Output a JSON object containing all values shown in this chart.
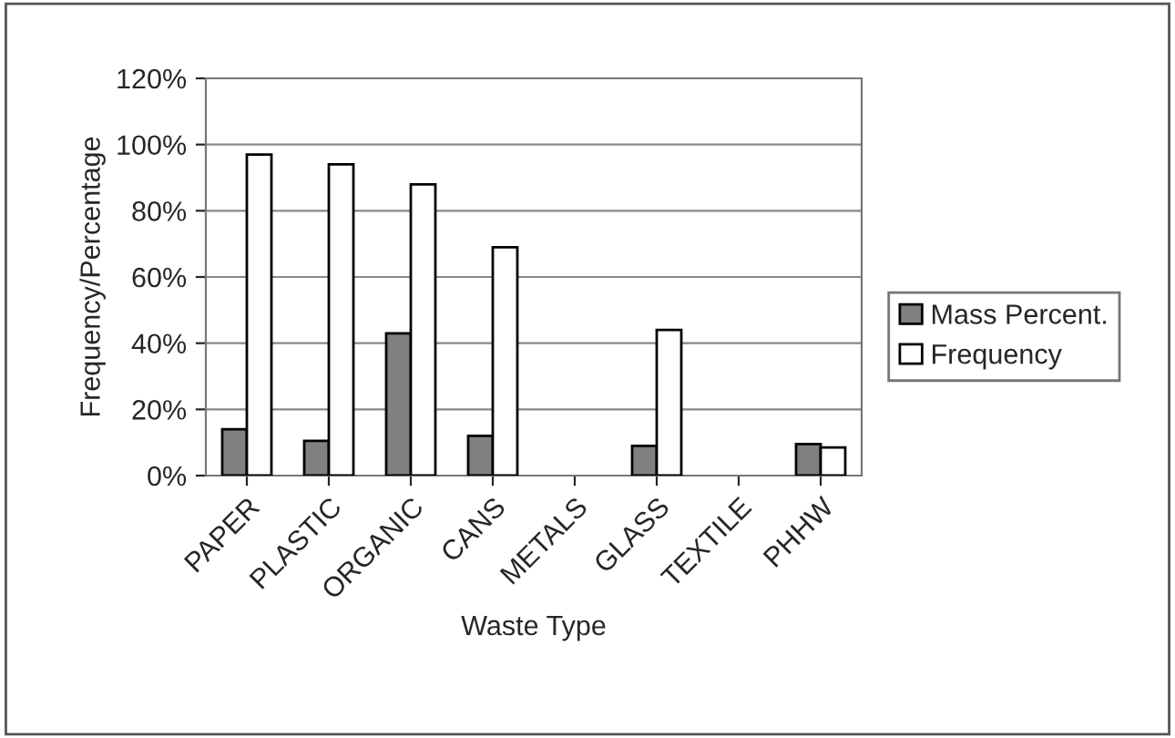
{
  "chart_data": {
    "type": "bar",
    "xlabel": "Waste Type",
    "ylabel": "Frequency/Percentage",
    "categories": [
      "PAPER",
      "PLASTIC",
      "ORGANIC",
      "CANS",
      "METALS",
      "GLASS",
      "TEXTILE",
      "PHHW"
    ],
    "series": [
      {
        "name": "Mass Percent.",
        "color": "#808080",
        "values": [
          14,
          10.5,
          43,
          12,
          null,
          9,
          null,
          9.5
        ]
      },
      {
        "name": "Frequency",
        "color": "#ffffff",
        "values": [
          97,
          94,
          88,
          69,
          null,
          44,
          null,
          8.5
        ]
      }
    ],
    "ylim": [
      0,
      120
    ],
    "yticks": [
      {
        "value": 0,
        "label": "0%"
      },
      {
        "value": 20,
        "label": "20%"
      },
      {
        "value": 40,
        "label": "40%"
      },
      {
        "value": 60,
        "label": "60%"
      },
      {
        "value": 80,
        "label": "80%"
      },
      {
        "value": 100,
        "label": "100%"
      },
      {
        "value": 120,
        "label": "120%"
      }
    ],
    "grid": "y",
    "legend": "right"
  }
}
